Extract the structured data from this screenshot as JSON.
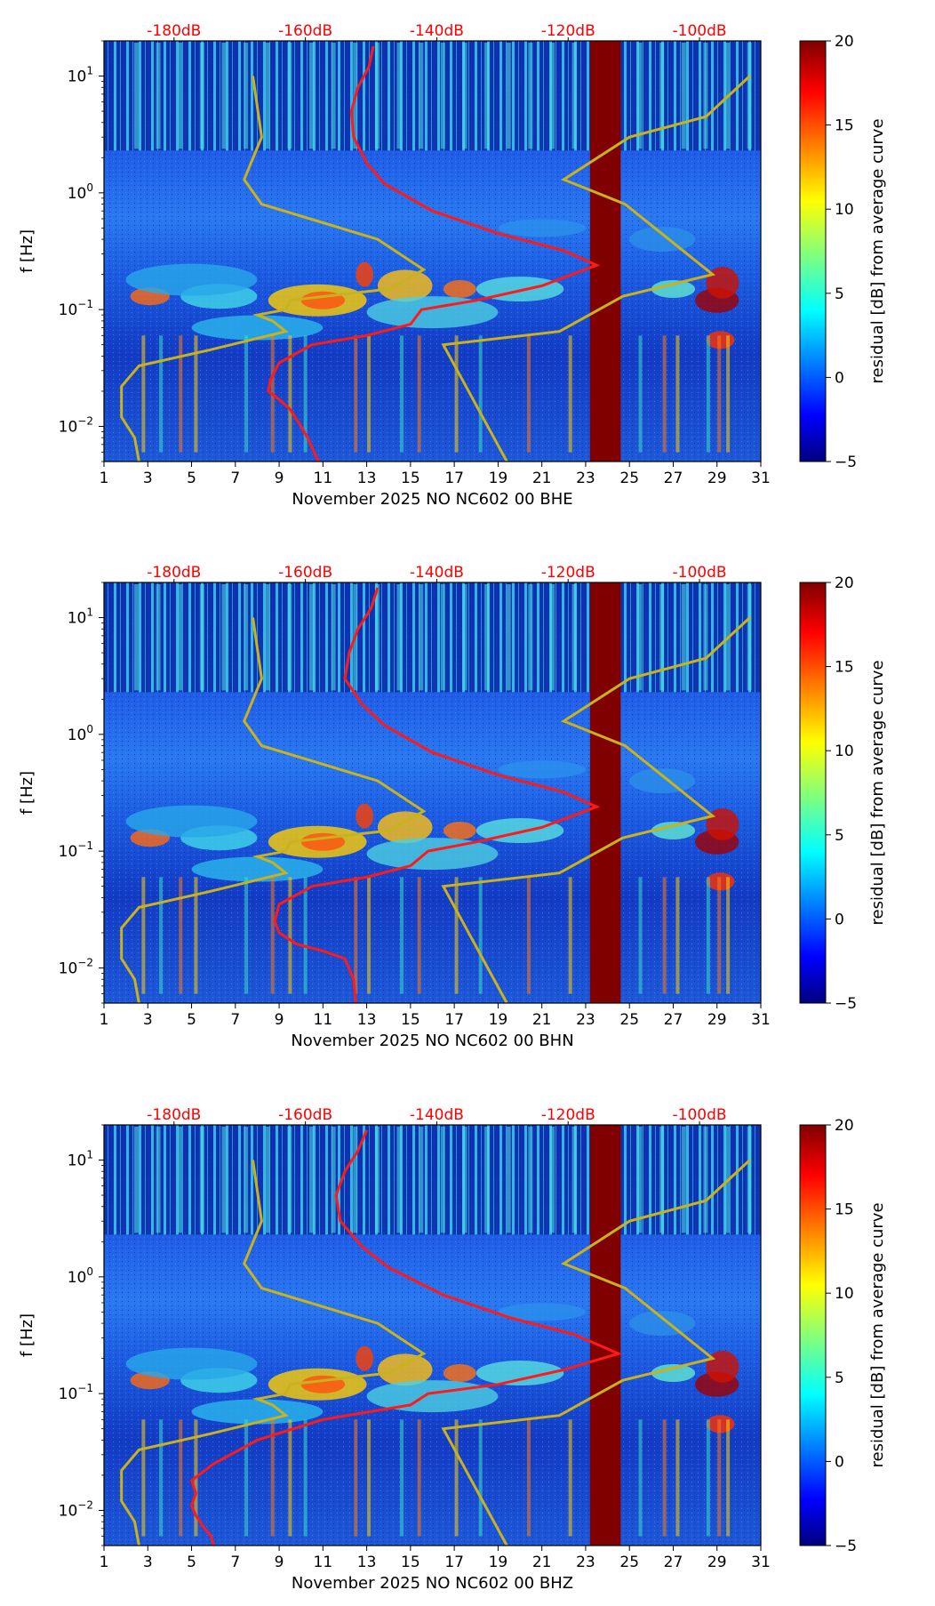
{
  "chart_data": [
    {
      "type": "heatmap",
      "xlabel": "November 2025 NO NC602 00 BHE",
      "ylabel": "f [Hz]",
      "x_ticks": [
        "1",
        "3",
        "5",
        "7",
        "9",
        "11",
        "13",
        "15",
        "17",
        "19",
        "21",
        "23",
        "25",
        "27",
        "29",
        "31"
      ],
      "y_ticks": [
        {
          "base": "10",
          "exp": "−2",
          "value": 0.01
        },
        {
          "base": "10",
          "exp": "−1",
          "value": 0.1
        },
        {
          "base": "10",
          "exp": "0",
          "value": 1
        },
        {
          "base": "10",
          "exp": "1",
          "value": 10
        }
      ],
      "xlim": [
        1,
        31
      ],
      "ylim": [
        0.005,
        20
      ],
      "top_axis_ticks": [
        {
          "label": "-180dB",
          "x": 4.2
        },
        {
          "label": "-160dB",
          "x": 10.2
        },
        {
          "label": "-140dB",
          "x": 16.2
        },
        {
          "label": "-120dB",
          "x": 22.2
        },
        {
          "label": "-100dB",
          "x": 28.2
        }
      ],
      "colorbar": {
        "label": "residual [dB] from average curve",
        "ticks": [
          "20",
          "15",
          "10",
          "5",
          "0",
          "−5"
        ],
        "range": [
          -5,
          20
        ]
      },
      "data_gap": {
        "start": 23.2,
        "end": 24.6
      },
      "red_curve": [
        [
          13.3,
          18
        ],
        [
          13.1,
          12
        ],
        [
          12.6,
          8
        ],
        [
          12.3,
          5
        ],
        [
          12.4,
          3
        ],
        [
          13.0,
          1.8
        ],
        [
          13.8,
          1.2
        ],
        [
          16,
          0.7
        ],
        [
          19,
          0.45
        ],
        [
          22,
          0.32
        ],
        [
          23.5,
          0.24
        ],
        [
          21,
          0.16
        ],
        [
          18,
          0.12
        ],
        [
          15.5,
          0.1
        ],
        [
          15,
          0.075
        ],
        [
          13,
          0.06
        ],
        [
          10.5,
          0.05
        ],
        [
          9,
          0.035
        ],
        [
          8.6,
          0.025
        ],
        [
          8.5,
          0.02
        ],
        [
          9,
          0.017
        ],
        [
          9.5,
          0.014
        ],
        [
          10,
          0.01
        ],
        [
          10.3,
          0.008
        ],
        [
          10.6,
          0.006
        ],
        [
          10.8,
          0.005
        ]
      ],
      "yellow_curve": [
        [
          7.8,
          10
        ],
        [
          8.2,
          3
        ],
        [
          7.4,
          1.3
        ],
        [
          8.2,
          0.8
        ],
        [
          13.5,
          0.4
        ],
        [
          15.6,
          0.22
        ],
        [
          14,
          0.15
        ],
        [
          9.5,
          0.12
        ],
        [
          9.3,
          0.1
        ],
        [
          8,
          0.09
        ],
        [
          8.7,
          0.08
        ],
        [
          9.3,
          0.065
        ],
        [
          5.8,
          0.045
        ],
        [
          2.6,
          0.033
        ],
        [
          1.8,
          0.022
        ],
        [
          1.8,
          0.012
        ],
        [
          2.4,
          0.008
        ],
        [
          2.6,
          0.005
        ]
      ],
      "yellow_curve_right": [
        [
          19.4,
          0.005
        ],
        [
          16.5,
          0.05
        ],
        [
          21.8,
          0.065
        ],
        [
          24.7,
          0.13
        ],
        [
          28.8,
          0.2
        ],
        [
          24.8,
          0.8
        ],
        [
          22,
          1.3
        ],
        [
          25,
          3
        ],
        [
          28.5,
          4.5
        ],
        [
          30.5,
          10
        ]
      ]
    },
    {
      "type": "heatmap",
      "xlabel": "November 2025 NO NC602 00 BHN",
      "ylabel": "f [Hz]",
      "x_ticks": [
        "1",
        "3",
        "5",
        "7",
        "9",
        "11",
        "13",
        "15",
        "17",
        "19",
        "21",
        "23",
        "25",
        "27",
        "29",
        "31"
      ],
      "y_ticks": [
        {
          "base": "10",
          "exp": "−2",
          "value": 0.01
        },
        {
          "base": "10",
          "exp": "−1",
          "value": 0.1
        },
        {
          "base": "10",
          "exp": "0",
          "value": 1
        },
        {
          "base": "10",
          "exp": "1",
          "value": 10
        }
      ],
      "xlim": [
        1,
        31
      ],
      "ylim": [
        0.005,
        20
      ],
      "top_axis_ticks": [
        {
          "label": "-180dB",
          "x": 4.2
        },
        {
          "label": "-160dB",
          "x": 10.2
        },
        {
          "label": "-140dB",
          "x": 16.2
        },
        {
          "label": "-120dB",
          "x": 22.2
        },
        {
          "label": "-100dB",
          "x": 28.2
        }
      ],
      "colorbar": {
        "label": "residual [dB] from average curve",
        "ticks": [
          "20",
          "15",
          "10",
          "5",
          "0",
          "−5"
        ],
        "range": [
          -5,
          20
        ]
      },
      "data_gap": {
        "start": 23.2,
        "end": 24.6
      },
      "red_curve": [
        [
          13.5,
          18
        ],
        [
          13.2,
          12
        ],
        [
          12.6,
          8
        ],
        [
          12.2,
          5
        ],
        [
          12.0,
          3
        ],
        [
          12.8,
          1.8
        ],
        [
          13.8,
          1.2
        ],
        [
          16,
          0.7
        ],
        [
          19,
          0.45
        ],
        [
          22,
          0.32
        ],
        [
          23.5,
          0.24
        ],
        [
          21,
          0.16
        ],
        [
          18,
          0.12
        ],
        [
          15.8,
          0.1
        ],
        [
          15,
          0.075
        ],
        [
          13,
          0.06
        ],
        [
          10.5,
          0.05
        ],
        [
          9,
          0.035
        ],
        [
          8.8,
          0.025
        ],
        [
          9,
          0.02
        ],
        [
          9.8,
          0.016
        ],
        [
          11,
          0.014
        ],
        [
          12,
          0.012
        ],
        [
          12.4,
          0.008
        ],
        [
          12.5,
          0.005
        ]
      ],
      "yellow_curve": [
        [
          7.8,
          10
        ],
        [
          8.2,
          3
        ],
        [
          7.4,
          1.3
        ],
        [
          8.2,
          0.8
        ],
        [
          13.5,
          0.4
        ],
        [
          15.6,
          0.22
        ],
        [
          14,
          0.15
        ],
        [
          9.5,
          0.12
        ],
        [
          9.3,
          0.1
        ],
        [
          8,
          0.09
        ],
        [
          8.7,
          0.08
        ],
        [
          9.3,
          0.065
        ],
        [
          5.8,
          0.045
        ],
        [
          2.6,
          0.033
        ],
        [
          1.8,
          0.022
        ],
        [
          1.8,
          0.012
        ],
        [
          2.4,
          0.008
        ],
        [
          2.6,
          0.005
        ]
      ],
      "yellow_curve_right": [
        [
          19.4,
          0.005
        ],
        [
          16.5,
          0.05
        ],
        [
          21.8,
          0.065
        ],
        [
          24.7,
          0.13
        ],
        [
          28.8,
          0.2
        ],
        [
          24.8,
          0.8
        ],
        [
          22,
          1.3
        ],
        [
          25,
          3
        ],
        [
          28.5,
          4.5
        ],
        [
          30.5,
          10
        ]
      ]
    },
    {
      "type": "heatmap",
      "xlabel": "November 2025 NO NC602 00 BHZ",
      "ylabel": "f [Hz]",
      "x_ticks": [
        "1",
        "3",
        "5",
        "7",
        "9",
        "11",
        "13",
        "15",
        "17",
        "19",
        "21",
        "23",
        "25",
        "27",
        "29",
        "31"
      ],
      "y_ticks": [
        {
          "base": "10",
          "exp": "−2",
          "value": 0.01
        },
        {
          "base": "10",
          "exp": "−1",
          "value": 0.1
        },
        {
          "base": "10",
          "exp": "0",
          "value": 1
        },
        {
          "base": "10",
          "exp": "1",
          "value": 10
        }
      ],
      "xlim": [
        1,
        31
      ],
      "ylim": [
        0.005,
        20
      ],
      "top_axis_ticks": [
        {
          "label": "-180dB",
          "x": 4.2
        },
        {
          "label": "-160dB",
          "x": 10.2
        },
        {
          "label": "-140dB",
          "x": 16.2
        },
        {
          "label": "-120dB",
          "x": 22.2
        },
        {
          "label": "-100dB",
          "x": 28.2
        }
      ],
      "colorbar": {
        "label": "residual [dB] from average curve",
        "ticks": [
          "20",
          "15",
          "10",
          "5",
          "0",
          "−5"
        ],
        "range": [
          -5,
          20
        ]
      },
      "data_gap": {
        "start": 23.2,
        "end": 24.6
      },
      "red_curve": [
        [
          13.0,
          18
        ],
        [
          12.6,
          12
        ],
        [
          12.0,
          8
        ],
        [
          11.6,
          5
        ],
        [
          11.8,
          3
        ],
        [
          12.8,
          1.8
        ],
        [
          14,
          1.2
        ],
        [
          16.5,
          0.7
        ],
        [
          19.5,
          0.45
        ],
        [
          22.5,
          0.32
        ],
        [
          24.5,
          0.22
        ],
        [
          22,
          0.16
        ],
        [
          19,
          0.12
        ],
        [
          15.8,
          0.1
        ],
        [
          15,
          0.08
        ],
        [
          11,
          0.06
        ],
        [
          8,
          0.04
        ],
        [
          6,
          0.025
        ],
        [
          5,
          0.018
        ],
        [
          5.2,
          0.014
        ],
        [
          5,
          0.011
        ],
        [
          5.2,
          0.009
        ],
        [
          5.6,
          0.007
        ],
        [
          5.9,
          0.006
        ],
        [
          6,
          0.005
        ]
      ],
      "yellow_curve": [
        [
          7.8,
          10
        ],
        [
          8.2,
          3
        ],
        [
          7.4,
          1.3
        ],
        [
          8.2,
          0.8
        ],
        [
          13.5,
          0.4
        ],
        [
          15.6,
          0.22
        ],
        [
          14,
          0.15
        ],
        [
          9.5,
          0.12
        ],
        [
          9.3,
          0.1
        ],
        [
          8,
          0.09
        ],
        [
          8.7,
          0.08
        ],
        [
          9.3,
          0.065
        ],
        [
          5.8,
          0.045
        ],
        [
          2.6,
          0.033
        ],
        [
          1.8,
          0.022
        ],
        [
          1.8,
          0.012
        ],
        [
          2.4,
          0.008
        ],
        [
          2.6,
          0.005
        ]
      ],
      "yellow_curve_right": [
        [
          19.4,
          0.005
        ],
        [
          16.5,
          0.05
        ],
        [
          21.8,
          0.065
        ],
        [
          24.7,
          0.13
        ],
        [
          28.8,
          0.2
        ],
        [
          24.8,
          0.8
        ],
        [
          22,
          1.3
        ],
        [
          25,
          3
        ],
        [
          28.5,
          4.5
        ],
        [
          30.5,
          10
        ]
      ]
    }
  ],
  "colors": {
    "red_curve": "#ff1a1a",
    "yellow_curve": "#c8b21e",
    "gap": "#800000",
    "top_labels": "#ff0000"
  }
}
